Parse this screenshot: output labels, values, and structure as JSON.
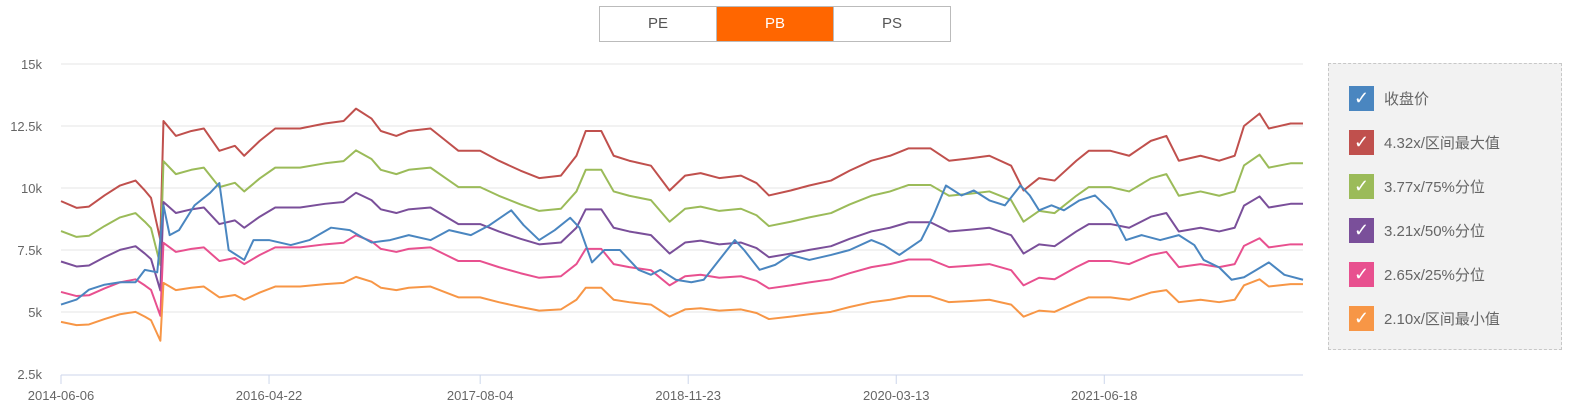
{
  "tabs": [
    {
      "label": "PE",
      "active": false
    },
    {
      "label": "PB",
      "active": true
    },
    {
      "label": "PS",
      "active": false
    }
  ],
  "accent_color": "#ff6600",
  "chart_data": {
    "type": "line",
    "ylim": [
      2500,
      15000
    ],
    "yticks": [
      "2.5k",
      "5k",
      "7.5k",
      "10k",
      "12.5k",
      "15k"
    ],
    "ytick_values": [
      2500,
      5000,
      7500,
      10000,
      12500,
      15000
    ],
    "xlim": [
      0,
      400
    ],
    "xticks": [
      {
        "index": 0,
        "label": "2014-06-06"
      },
      {
        "index": 67,
        "label": "2016-04-22"
      },
      {
        "index": 135,
        "label": "2017-08-04"
      },
      {
        "index": 202,
        "label": "2018-11-23"
      },
      {
        "index": 269,
        "label": "2020-03-13"
      },
      {
        "index": 336,
        "label": "2021-06-18"
      }
    ],
    "grid": true,
    "legend_position": "right",
    "close": {
      "name": "收盘价",
      "color": "#4a86c0",
      "points": [
        [
          0,
          5300
        ],
        [
          5,
          5500
        ],
        [
          9,
          5900
        ],
        [
          14,
          6100
        ],
        [
          19,
          6200
        ],
        [
          24,
          6200
        ],
        [
          27,
          6700
        ],
        [
          31,
          6600
        ],
        [
          33,
          9300
        ],
        [
          35,
          8100
        ],
        [
          38,
          8300
        ],
        [
          43,
          9300
        ],
        [
          48,
          9800
        ],
        [
          51,
          10200
        ],
        [
          54,
          7500
        ],
        [
          59,
          7100
        ],
        [
          62,
          7900
        ],
        [
          67,
          7900
        ],
        [
          74,
          7700
        ],
        [
          80,
          7900
        ],
        [
          87,
          8400
        ],
        [
          93,
          8300
        ],
        [
          100,
          7800
        ],
        [
          106,
          7900
        ],
        [
          112,
          8100
        ],
        [
          119,
          7900
        ],
        [
          125,
          8300
        ],
        [
          132,
          8100
        ],
        [
          138,
          8500
        ],
        [
          145,
          9100
        ],
        [
          149,
          8500
        ],
        [
          154,
          7900
        ],
        [
          159,
          8300
        ],
        [
          164,
          8800
        ],
        [
          167,
          8400
        ],
        [
          171,
          7000
        ],
        [
          175,
          7500
        ],
        [
          180,
          7500
        ],
        [
          186,
          6700
        ],
        [
          190,
          6500
        ],
        [
          193,
          6700
        ],
        [
          198,
          6300
        ],
        [
          203,
          6200
        ],
        [
          207,
          6300
        ],
        [
          212,
          7100
        ],
        [
          217,
          7900
        ],
        [
          220,
          7500
        ],
        [
          225,
          6700
        ],
        [
          230,
          6900
        ],
        [
          235,
          7300
        ],
        [
          241,
          7100
        ],
        [
          248,
          7300
        ],
        [
          254,
          7500
        ],
        [
          261,
          7900
        ],
        [
          265,
          7700
        ],
        [
          270,
          7300
        ],
        [
          277,
          7900
        ],
        [
          281,
          8900
        ],
        [
          285,
          10100
        ],
        [
          290,
          9700
        ],
        [
          294,
          9900
        ],
        [
          299,
          9500
        ],
        [
          304,
          9300
        ],
        [
          309,
          10100
        ],
        [
          312,
          9700
        ],
        [
          315,
          9100
        ],
        [
          319,
          9300
        ],
        [
          323,
          9100
        ],
        [
          328,
          9500
        ],
        [
          333,
          9700
        ],
        [
          338,
          9100
        ],
        [
          343,
          7900
        ],
        [
          348,
          8100
        ],
        [
          354,
          7900
        ],
        [
          360,
          8100
        ],
        [
          365,
          7700
        ],
        [
          368,
          7100
        ],
        [
          373,
          6800
        ],
        [
          377,
          6300
        ],
        [
          381,
          6400
        ],
        [
          385,
          6700
        ],
        [
          389,
          7000
        ],
        [
          394,
          6500
        ],
        [
          400,
          6300
        ]
      ]
    },
    "bands": [
      {
        "name": "4.32x/区间最大值",
        "multiple": 4.32,
        "color": "#c0504d"
      },
      {
        "name": "3.77x/75%分位",
        "multiple": 3.77,
        "color": "#9bbb59"
      },
      {
        "name": "3.21x/50%分位",
        "multiple": 3.21,
        "color": "#7a4f9a"
      },
      {
        "name": "2.65x/25%分位",
        "multiple": 2.65,
        "color": "#e8508f"
      },
      {
        "name": "2.10x/区间最小值",
        "multiple": 2.1,
        "color": "#f79646"
      }
    ],
    "max_band_points": [
      [
        0,
        9470
      ],
      [
        5,
        9200
      ],
      [
        9,
        9250
      ],
      [
        14,
        9700
      ],
      [
        19,
        10100
      ],
      [
        24,
        10300
      ],
      [
        27,
        9900
      ],
      [
        29,
        9600
      ],
      [
        32,
        7900
      ],
      [
        33,
        12700
      ],
      [
        37,
        12100
      ],
      [
        42,
        12300
      ],
      [
        46,
        12400
      ],
      [
        51,
        11500
      ],
      [
        56,
        11700
      ],
      [
        59,
        11300
      ],
      [
        64,
        11900
      ],
      [
        69,
        12400
      ],
      [
        77,
        12400
      ],
      [
        85,
        12600
      ],
      [
        91,
        12700
      ],
      [
        95,
        13200
      ],
      [
        100,
        12800
      ],
      [
        103,
        12300
      ],
      [
        108,
        12100
      ],
      [
        112,
        12300
      ],
      [
        119,
        12400
      ],
      [
        124,
        11900
      ],
      [
        128,
        11500
      ],
      [
        135,
        11500
      ],
      [
        141,
        11100
      ],
      [
        148,
        10700
      ],
      [
        154,
        10400
      ],
      [
        161,
        10500
      ],
      [
        166,
        11300
      ],
      [
        169,
        12300
      ],
      [
        174,
        12300
      ],
      [
        178,
        11300
      ],
      [
        183,
        11100
      ],
      [
        190,
        10900
      ],
      [
        196,
        9900
      ],
      [
        201,
        10500
      ],
      [
        206,
        10600
      ],
      [
        212,
        10400
      ],
      [
        219,
        10500
      ],
      [
        224,
        10200
      ],
      [
        228,
        9700
      ],
      [
        235,
        9900
      ],
      [
        241,
        10100
      ],
      [
        248,
        10300
      ],
      [
        254,
        10700
      ],
      [
        261,
        11100
      ],
      [
        267,
        11300
      ],
      [
        273,
        11600
      ],
      [
        280,
        11600
      ],
      [
        286,
        11100
      ],
      [
        293,
        11200
      ],
      [
        299,
        11300
      ],
      [
        306,
        10900
      ],
      [
        310,
        9900
      ],
      [
        315,
        10400
      ],
      [
        320,
        10300
      ],
      [
        327,
        11100
      ],
      [
        331,
        11500
      ],
      [
        338,
        11500
      ],
      [
        344,
        11300
      ],
      [
        351,
        11900
      ],
      [
        356,
        12100
      ],
      [
        360,
        11100
      ],
      [
        367,
        11300
      ],
      [
        373,
        11100
      ],
      [
        378,
        11300
      ],
      [
        381,
        12500
      ],
      [
        386,
        13000
      ],
      [
        389,
        12400
      ],
      [
        396,
        12600
      ],
      [
        400,
        12600
      ]
    ]
  }
}
